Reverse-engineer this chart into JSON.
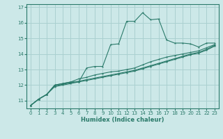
{
  "xlabel": "Humidex (Indice chaleur)",
  "x_values": [
    0,
    1,
    2,
    3,
    4,
    5,
    6,
    7,
    8,
    9,
    10,
    11,
    12,
    13,
    14,
    15,
    16,
    17,
    18,
    19,
    20,
    21,
    22,
    23
  ],
  "line1": [
    10.7,
    11.1,
    11.4,
    12.0,
    12.1,
    12.2,
    12.2,
    13.1,
    13.2,
    13.2,
    14.6,
    14.65,
    16.1,
    16.1,
    16.65,
    16.2,
    16.25,
    14.9,
    14.7,
    14.7,
    14.65,
    14.45,
    14.7,
    14.7
  ],
  "line2": [
    10.7,
    11.1,
    11.4,
    12.0,
    12.1,
    12.2,
    12.4,
    12.5,
    12.65,
    12.75,
    12.85,
    12.9,
    13.0,
    13.1,
    13.3,
    13.5,
    13.65,
    13.8,
    13.9,
    14.0,
    14.1,
    14.2,
    14.4,
    14.6
  ],
  "line3": [
    10.7,
    11.1,
    11.4,
    11.95,
    12.05,
    12.15,
    12.25,
    12.35,
    12.45,
    12.55,
    12.65,
    12.75,
    12.85,
    12.95,
    13.1,
    13.25,
    13.4,
    13.55,
    13.7,
    13.85,
    14.0,
    14.1,
    14.3,
    14.55
  ],
  "line4": [
    10.7,
    11.1,
    11.4,
    11.9,
    12.0,
    12.1,
    12.2,
    12.3,
    12.4,
    12.5,
    12.6,
    12.7,
    12.8,
    12.9,
    13.05,
    13.2,
    13.35,
    13.5,
    13.65,
    13.8,
    13.95,
    14.05,
    14.25,
    14.5
  ],
  "line_color": "#2a7a6a",
  "bg_color": "#cce8e8",
  "grid_color": "#aad0d0",
  "ylim": [
    10.5,
    17.2
  ],
  "xlim": [
    -0.5,
    23.5
  ],
  "yticks": [
    11,
    12,
    13,
    14,
    15,
    16,
    17
  ],
  "xticks": [
    0,
    1,
    2,
    3,
    4,
    5,
    6,
    7,
    8,
    9,
    10,
    11,
    12,
    13,
    14,
    15,
    16,
    17,
    18,
    19,
    20,
    21,
    22,
    23
  ]
}
